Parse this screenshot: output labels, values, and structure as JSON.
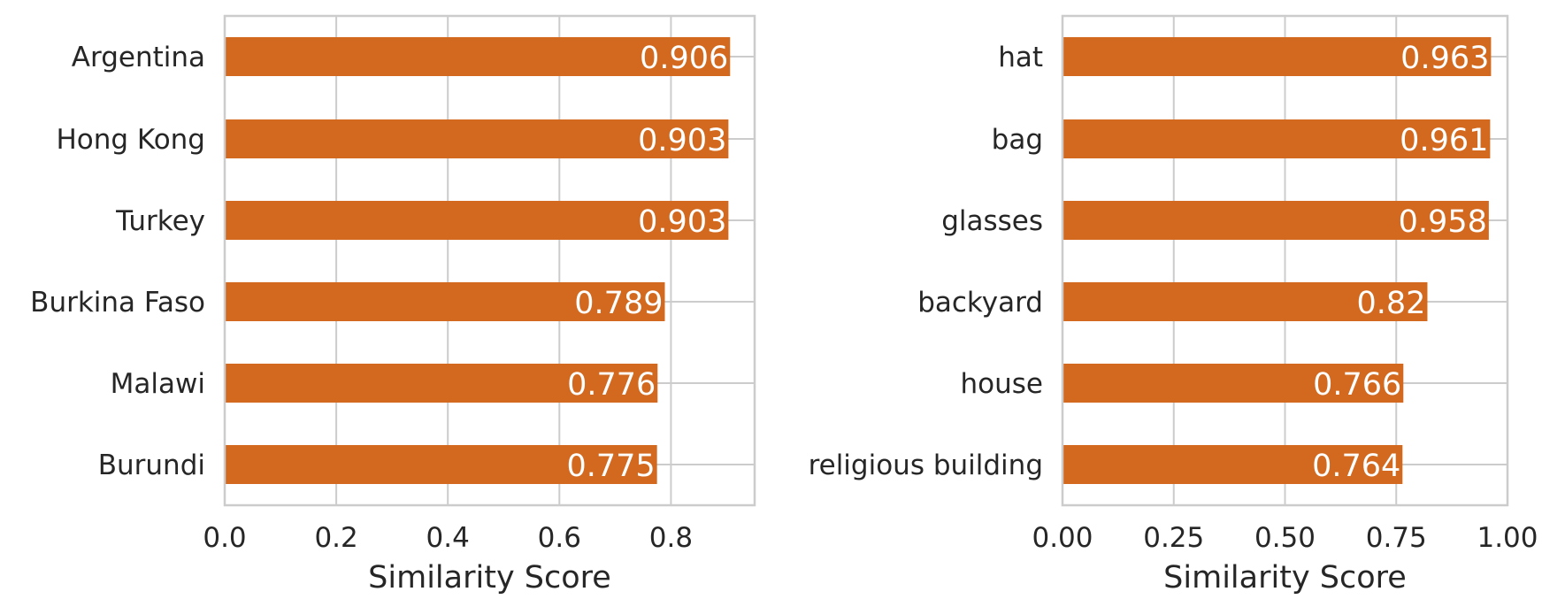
{
  "chart_data": [
    {
      "type": "bar",
      "orientation": "horizontal",
      "categories": [
        "Argentina",
        "Hong Kong",
        "Turkey",
        "Burkina Faso",
        "Malawi",
        "Burundi"
      ],
      "values": [
        0.906,
        0.903,
        0.903,
        0.789,
        0.776,
        0.775
      ],
      "data_labels": [
        "0.906",
        "0.903",
        "0.903",
        "0.789",
        "0.776",
        "0.775"
      ],
      "xlabel": "Similarity Score",
      "ylabel": "",
      "xlim": [
        0,
        0.95
      ],
      "xticks": [
        0.0,
        0.2,
        0.4,
        0.6,
        0.8
      ],
      "xtick_labels": [
        "0.0",
        "0.2",
        "0.4",
        "0.6",
        "0.8"
      ],
      "grid": true,
      "bar_color": "#d2691e"
    },
    {
      "type": "bar",
      "orientation": "horizontal",
      "categories": [
        "hat",
        "bag",
        "glasses",
        "backyard",
        "house",
        "religious building"
      ],
      "values": [
        0.963,
        0.961,
        0.958,
        0.82,
        0.766,
        0.764
      ],
      "data_labels": [
        "0.963",
        "0.961",
        "0.958",
        "0.82",
        "0.766",
        "0.764"
      ],
      "xlabel": "Similarity Score",
      "ylabel": "",
      "xlim": [
        0,
        1.0
      ],
      "xticks": [
        0.0,
        0.25,
        0.5,
        0.75,
        1.0
      ],
      "xtick_labels": [
        "0.00",
        "0.25",
        "0.50",
        "0.75",
        "1.00"
      ],
      "grid": true,
      "bar_color": "#d2691e"
    }
  ],
  "style": {
    "grid_color": "#cccccc",
    "text_color": "#262626",
    "label_color": "#ffffff",
    "spine_color": "#cccccc"
  }
}
